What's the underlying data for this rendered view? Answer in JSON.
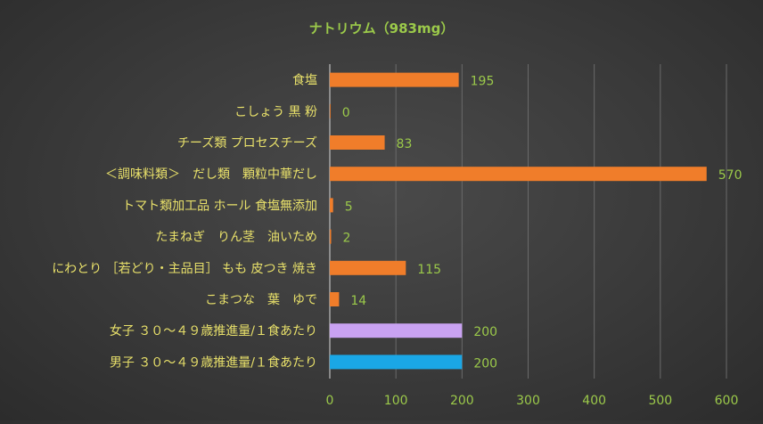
{
  "chart_data": {
    "type": "bar",
    "orientation": "horizontal",
    "title": "ナトリウム（983mg）",
    "categories": [
      "食塩",
      "こしょう 黒 粉",
      "チーズ類 プロセスチーズ",
      "＜調味料類＞　だし類　顆粒中華だし",
      "トマト類加工品 ホール 食塩無添加",
      "たまねぎ　りん茎　油いため",
      "にわとり ［若どり・主品目］ もも 皮つき 焼き",
      "こまつな　葉　ゆで",
      "女子 ３０～４９歳推進量/１食あたり",
      "男子 ３０～４９歳推進量/１食あたり"
    ],
    "values": [
      195,
      0,
      83,
      570,
      5,
      2,
      115,
      14,
      200,
      200
    ],
    "bar_colors": [
      "#f07d2a",
      "#f07d2a",
      "#f07d2a",
      "#f07d2a",
      "#f07d2a",
      "#f07d2a",
      "#f07d2a",
      "#f07d2a",
      "#c9a2f2",
      "#1aa7e6"
    ],
    "xlim": [
      0,
      600
    ],
    "xticks": [
      "0",
      "100",
      "200",
      "300",
      "400",
      "500",
      "600"
    ],
    "grid": "vertical",
    "legend": "none",
    "xlabel": "",
    "ylabel": ""
  }
}
